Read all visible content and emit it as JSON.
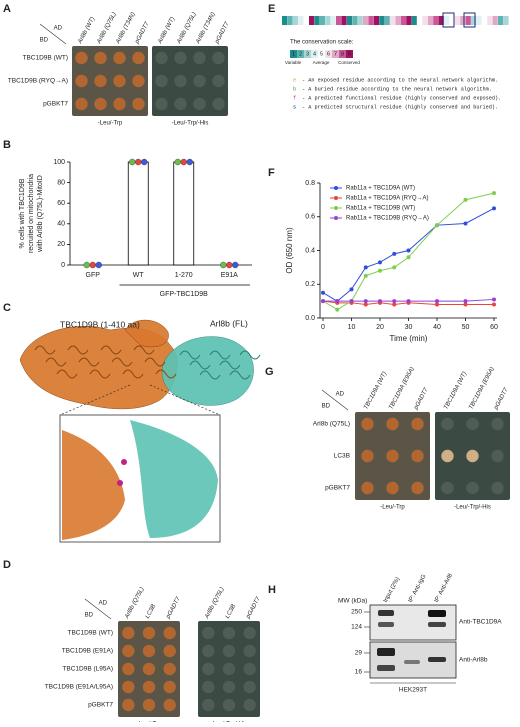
{
  "panels": {
    "A": {
      "label": "A",
      "ad": "AD",
      "bd": "BD",
      "columns": [
        "Arl8b (WT)",
        "Arl8b (Q75L)",
        "Arl8b (T34N)",
        "pGADT7"
      ],
      "rows": [
        "TBC1D9B (WT)",
        "TBC1D9B (RYQ→A)",
        "pGBKT7"
      ],
      "conditions": [
        "-Leu/-Trp",
        "-Leu/-Trp/-His"
      ]
    },
    "B": {
      "label": "B"
    },
    "C": {
      "label": "C",
      "labels": [
        "TBC1D9B (1-410 aa)",
        "Arl8b (FL)"
      ]
    },
    "D": {
      "label": "D",
      "ad": "AD",
      "bd": "BD",
      "columns": [
        "Arl8b (Q75L)",
        "LC3B",
        "pGADT7"
      ],
      "rows": [
        "TBC1D9B (WT)",
        "TBC1D9B (E91A)",
        "TBC1D9B (L95A)",
        "TBC1D9B (E91A/L95A)",
        "pGBKT7"
      ],
      "conditions": [
        "-Leu/-Trp",
        "-Leu/-Trp/-His"
      ]
    },
    "E": {
      "label": "E",
      "scale_title": "The conservation scale:",
      "scale_digits": [
        "1",
        "2",
        "3",
        "4",
        "5",
        "6",
        "7",
        "8",
        "9"
      ],
      "scale_labels": [
        "Variable",
        "Average",
        "Conserved"
      ],
      "legend": [
        {
          "key": "e",
          "text": "- An exposed residue according to the neural network algorithm."
        },
        {
          "key": "b",
          "text": "- A buried residue according to the neural network algorithm."
        },
        {
          "key": "f",
          "text": "- A predicted functional residue (highly conserved and exposed)."
        },
        {
          "key": "s",
          "text": "- A predicted structural residue (highly conserved and buried)."
        }
      ]
    },
    "F": {
      "label": "F"
    },
    "G": {
      "label": "G",
      "ad": "AD",
      "bd": "BD",
      "columns": [
        "TBC1D9A (WT)",
        "TBC1D9A (E95A)",
        "pGADT7"
      ],
      "rows": [
        "Arl8b (Q75L)",
        "LC3B",
        "pGBKT7"
      ],
      "conditions": [
        "-Leu/-Trp",
        "-Leu/-Trp/-His"
      ]
    },
    "H": {
      "label": "H",
      "mw_title": "MW (kDa)",
      "mw": [
        "250",
        "124",
        "29",
        "16"
      ],
      "lanes": [
        "Input (2%)",
        "IP: Anti-IgG",
        "IP: Anti-Arl8"
      ],
      "antibodies": [
        "Anti-TBC1D9A",
        "Anti-Arl8b"
      ],
      "cell_line": "HEK293T"
    }
  },
  "chart_data": [
    {
      "type": "bar",
      "ylabel": [
        "% cells with TBC1D9B",
        "recruited on mitochondria",
        "with Arl8b (Q75L)-MitoID"
      ],
      "categories": [
        "GFP",
        "WT",
        "1-270",
        "E91A"
      ],
      "group_label": "GFP-TBC1D9B",
      "values": [
        0,
        100,
        100,
        0
      ],
      "color": "#ffffff",
      "series": [
        {
          "color": "#6abf4b",
          "values": [
            0,
            100,
            100,
            0
          ]
        },
        {
          "color": "#e8463c",
          "values": [
            0,
            100,
            100,
            0
          ]
        },
        {
          "color": "#3d5bd9",
          "values": [
            0,
            100,
            100,
            0
          ]
        }
      ],
      "ylim": [
        0,
        100
      ],
      "yticks": [
        0,
        20,
        40,
        60,
        80,
        100
      ]
    },
    {
      "type": "line",
      "xlabel": "Time (min)",
      "ylabel": "OD (650 nm)",
      "x": [
        0,
        5,
        10,
        15,
        20,
        25,
        30,
        40,
        50,
        60
      ],
      "series": [
        {
          "name": "Rab11a + TBC1D9A (WT)",
          "color": "#2f4de0",
          "values": [
            0.15,
            0.1,
            0.17,
            0.3,
            0.33,
            0.38,
            0.4,
            0.55,
            0.56,
            0.65
          ]
        },
        {
          "name": "Rab11a + TBC1D9A (RYQ→A)",
          "color": "#e8463c",
          "values": [
            0.1,
            0.09,
            0.09,
            0.08,
            0.09,
            0.08,
            0.09,
            0.08,
            0.08,
            0.08
          ]
        },
        {
          "name": "Rab11a + TBC1D9B (WT)",
          "color": "#7ccf4e",
          "values": [
            0.1,
            0.05,
            0.1,
            0.25,
            0.28,
            0.3,
            0.36,
            0.55,
            0.7,
            0.74
          ]
        },
        {
          "name": "Rab11a + TBC1D9B (RYQ→A)",
          "color": "#9b3fd4",
          "values": [
            0.1,
            0.1,
            0.1,
            0.1,
            0.1,
            0.1,
            0.1,
            0.1,
            0.1,
            0.11
          ]
        }
      ],
      "xlim": [
        0,
        60
      ],
      "xticks": [
        0,
        10,
        20,
        30,
        40,
        50,
        60
      ],
      "ylim": [
        0,
        0.8
      ],
      "yticks": [
        {
          "value": 0,
          "label": "0.0"
        },
        {
          "value": 0.2,
          "label": "0.2"
        },
        {
          "value": 0.4,
          "label": "0.4"
        },
        {
          "value": 0.6,
          "label": "0.6"
        },
        {
          "value": 0.8,
          "label": "0.8"
        }
      ]
    }
  ]
}
